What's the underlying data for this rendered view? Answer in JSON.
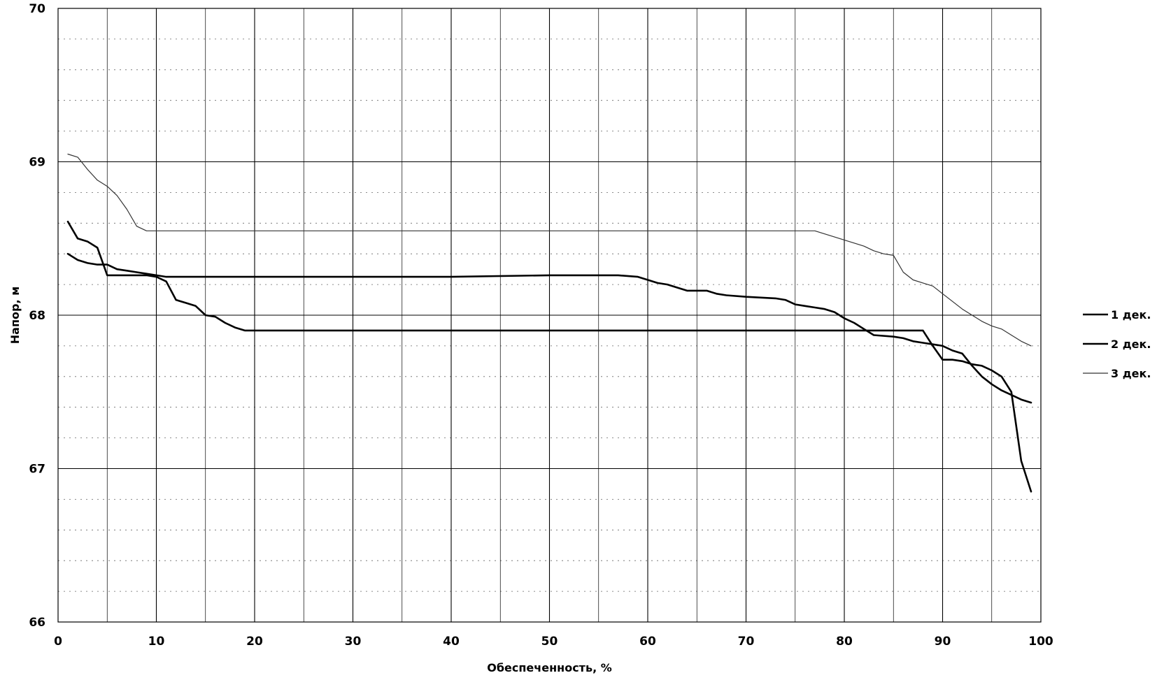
{
  "chart_data": {
    "type": "line",
    "title": "",
    "xlabel": "Обеспеченность, %",
    "ylabel": "Напор, м",
    "xlim": [
      0,
      100
    ],
    "ylim": [
      66,
      70
    ],
    "x_ticks": [
      "0",
      "10",
      "20",
      "30",
      "40",
      "50",
      "60",
      "70",
      "80",
      "90",
      "100"
    ],
    "y_ticks": [
      "66",
      "67",
      "68",
      "69",
      "70"
    ],
    "grid": true,
    "legend_position": "right",
    "series": [
      {
        "name": "1 дек.",
        "color": "#000000",
        "style": "thick",
        "points": [
          [
            1,
            68.4
          ],
          [
            2,
            68.36
          ],
          [
            3,
            68.34
          ],
          [
            4,
            68.33
          ],
          [
            5,
            68.33
          ],
          [
            6,
            68.3
          ],
          [
            7,
            68.29
          ],
          [
            8,
            68.28
          ],
          [
            9,
            68.27
          ],
          [
            10,
            68.26
          ],
          [
            11,
            68.25
          ],
          [
            15,
            68.25
          ],
          [
            20,
            68.25
          ],
          [
            30,
            68.25
          ],
          [
            40,
            68.25
          ],
          [
            50,
            68.26
          ],
          [
            57,
            68.26
          ],
          [
            59,
            68.25
          ],
          [
            60,
            68.23
          ],
          [
            61,
            68.21
          ],
          [
            62,
            68.2
          ],
          [
            63,
            68.18
          ],
          [
            64,
            68.16
          ],
          [
            66,
            68.16
          ],
          [
            67,
            68.14
          ],
          [
            68,
            68.13
          ],
          [
            70,
            68.12
          ],
          [
            73,
            68.11
          ],
          [
            74,
            68.1
          ],
          [
            75,
            68.07
          ],
          [
            76,
            68.06
          ],
          [
            77,
            68.05
          ],
          [
            78,
            68.04
          ],
          [
            79,
            68.02
          ],
          [
            80,
            67.98
          ],
          [
            81,
            67.95
          ],
          [
            82,
            67.91
          ],
          [
            83,
            67.87
          ],
          [
            85,
            67.86
          ],
          [
            86,
            67.85
          ],
          [
            87,
            67.83
          ],
          [
            88,
            67.82
          ],
          [
            89,
            67.81
          ],
          [
            90,
            67.8
          ],
          [
            91,
            67.77
          ],
          [
            92,
            67.75
          ],
          [
            93,
            67.67
          ],
          [
            94,
            67.6
          ],
          [
            95,
            67.55
          ],
          [
            96,
            67.51
          ],
          [
            97,
            67.48
          ],
          [
            98,
            67.45
          ],
          [
            99,
            67.43
          ]
        ]
      },
      {
        "name": "2 дек.",
        "color": "#000000",
        "style": "thick",
        "points": [
          [
            1,
            68.61
          ],
          [
            2,
            68.5
          ],
          [
            3,
            68.48
          ],
          [
            4,
            68.44
          ],
          [
            5,
            68.26
          ],
          [
            8,
            68.26
          ],
          [
            9,
            68.26
          ],
          [
            10,
            68.25
          ],
          [
            11,
            68.22
          ],
          [
            12,
            68.1
          ],
          [
            13,
            68.08
          ],
          [
            14,
            68.06
          ],
          [
            15,
            68.0
          ],
          [
            16,
            67.99
          ],
          [
            17,
            67.95
          ],
          [
            18,
            67.92
          ],
          [
            19,
            67.9
          ],
          [
            30,
            67.9
          ],
          [
            50,
            67.9
          ],
          [
            70,
            67.9
          ],
          [
            80,
            67.9
          ],
          [
            88,
            67.9
          ],
          [
            89,
            67.8
          ],
          [
            90,
            67.71
          ],
          [
            91,
            67.71
          ],
          [
            92,
            67.7
          ],
          [
            93,
            67.68
          ],
          [
            94,
            67.67
          ],
          [
            95,
            67.64
          ],
          [
            96,
            67.6
          ],
          [
            97,
            67.5
          ],
          [
            98,
            67.05
          ],
          [
            99,
            66.85
          ]
        ]
      },
      {
        "name": "3 дек.",
        "color": "#333333",
        "style": "thin",
        "points": [
          [
            1,
            69.05
          ],
          [
            2,
            69.03
          ],
          [
            3,
            68.95
          ],
          [
            4,
            68.88
          ],
          [
            5,
            68.84
          ],
          [
            6,
            68.78
          ],
          [
            7,
            68.69
          ],
          [
            8,
            68.58
          ],
          [
            9,
            68.55
          ],
          [
            20,
            68.55
          ],
          [
            50,
            68.55
          ],
          [
            70,
            68.55
          ],
          [
            77,
            68.55
          ],
          [
            78,
            68.53
          ],
          [
            79,
            68.51
          ],
          [
            80,
            68.49
          ],
          [
            81,
            68.47
          ],
          [
            82,
            68.45
          ],
          [
            83,
            68.42
          ],
          [
            84,
            68.4
          ],
          [
            85,
            68.39
          ],
          [
            86,
            68.28
          ],
          [
            87,
            68.23
          ],
          [
            88,
            68.21
          ],
          [
            89,
            68.19
          ],
          [
            90,
            68.14
          ],
          [
            91,
            68.09
          ],
          [
            92,
            68.04
          ],
          [
            93,
            68.0
          ],
          [
            94,
            67.96
          ],
          [
            95,
            67.93
          ],
          [
            96,
            67.91
          ],
          [
            97,
            67.87
          ],
          [
            98,
            67.83
          ],
          [
            99,
            67.8
          ]
        ]
      }
    ]
  }
}
